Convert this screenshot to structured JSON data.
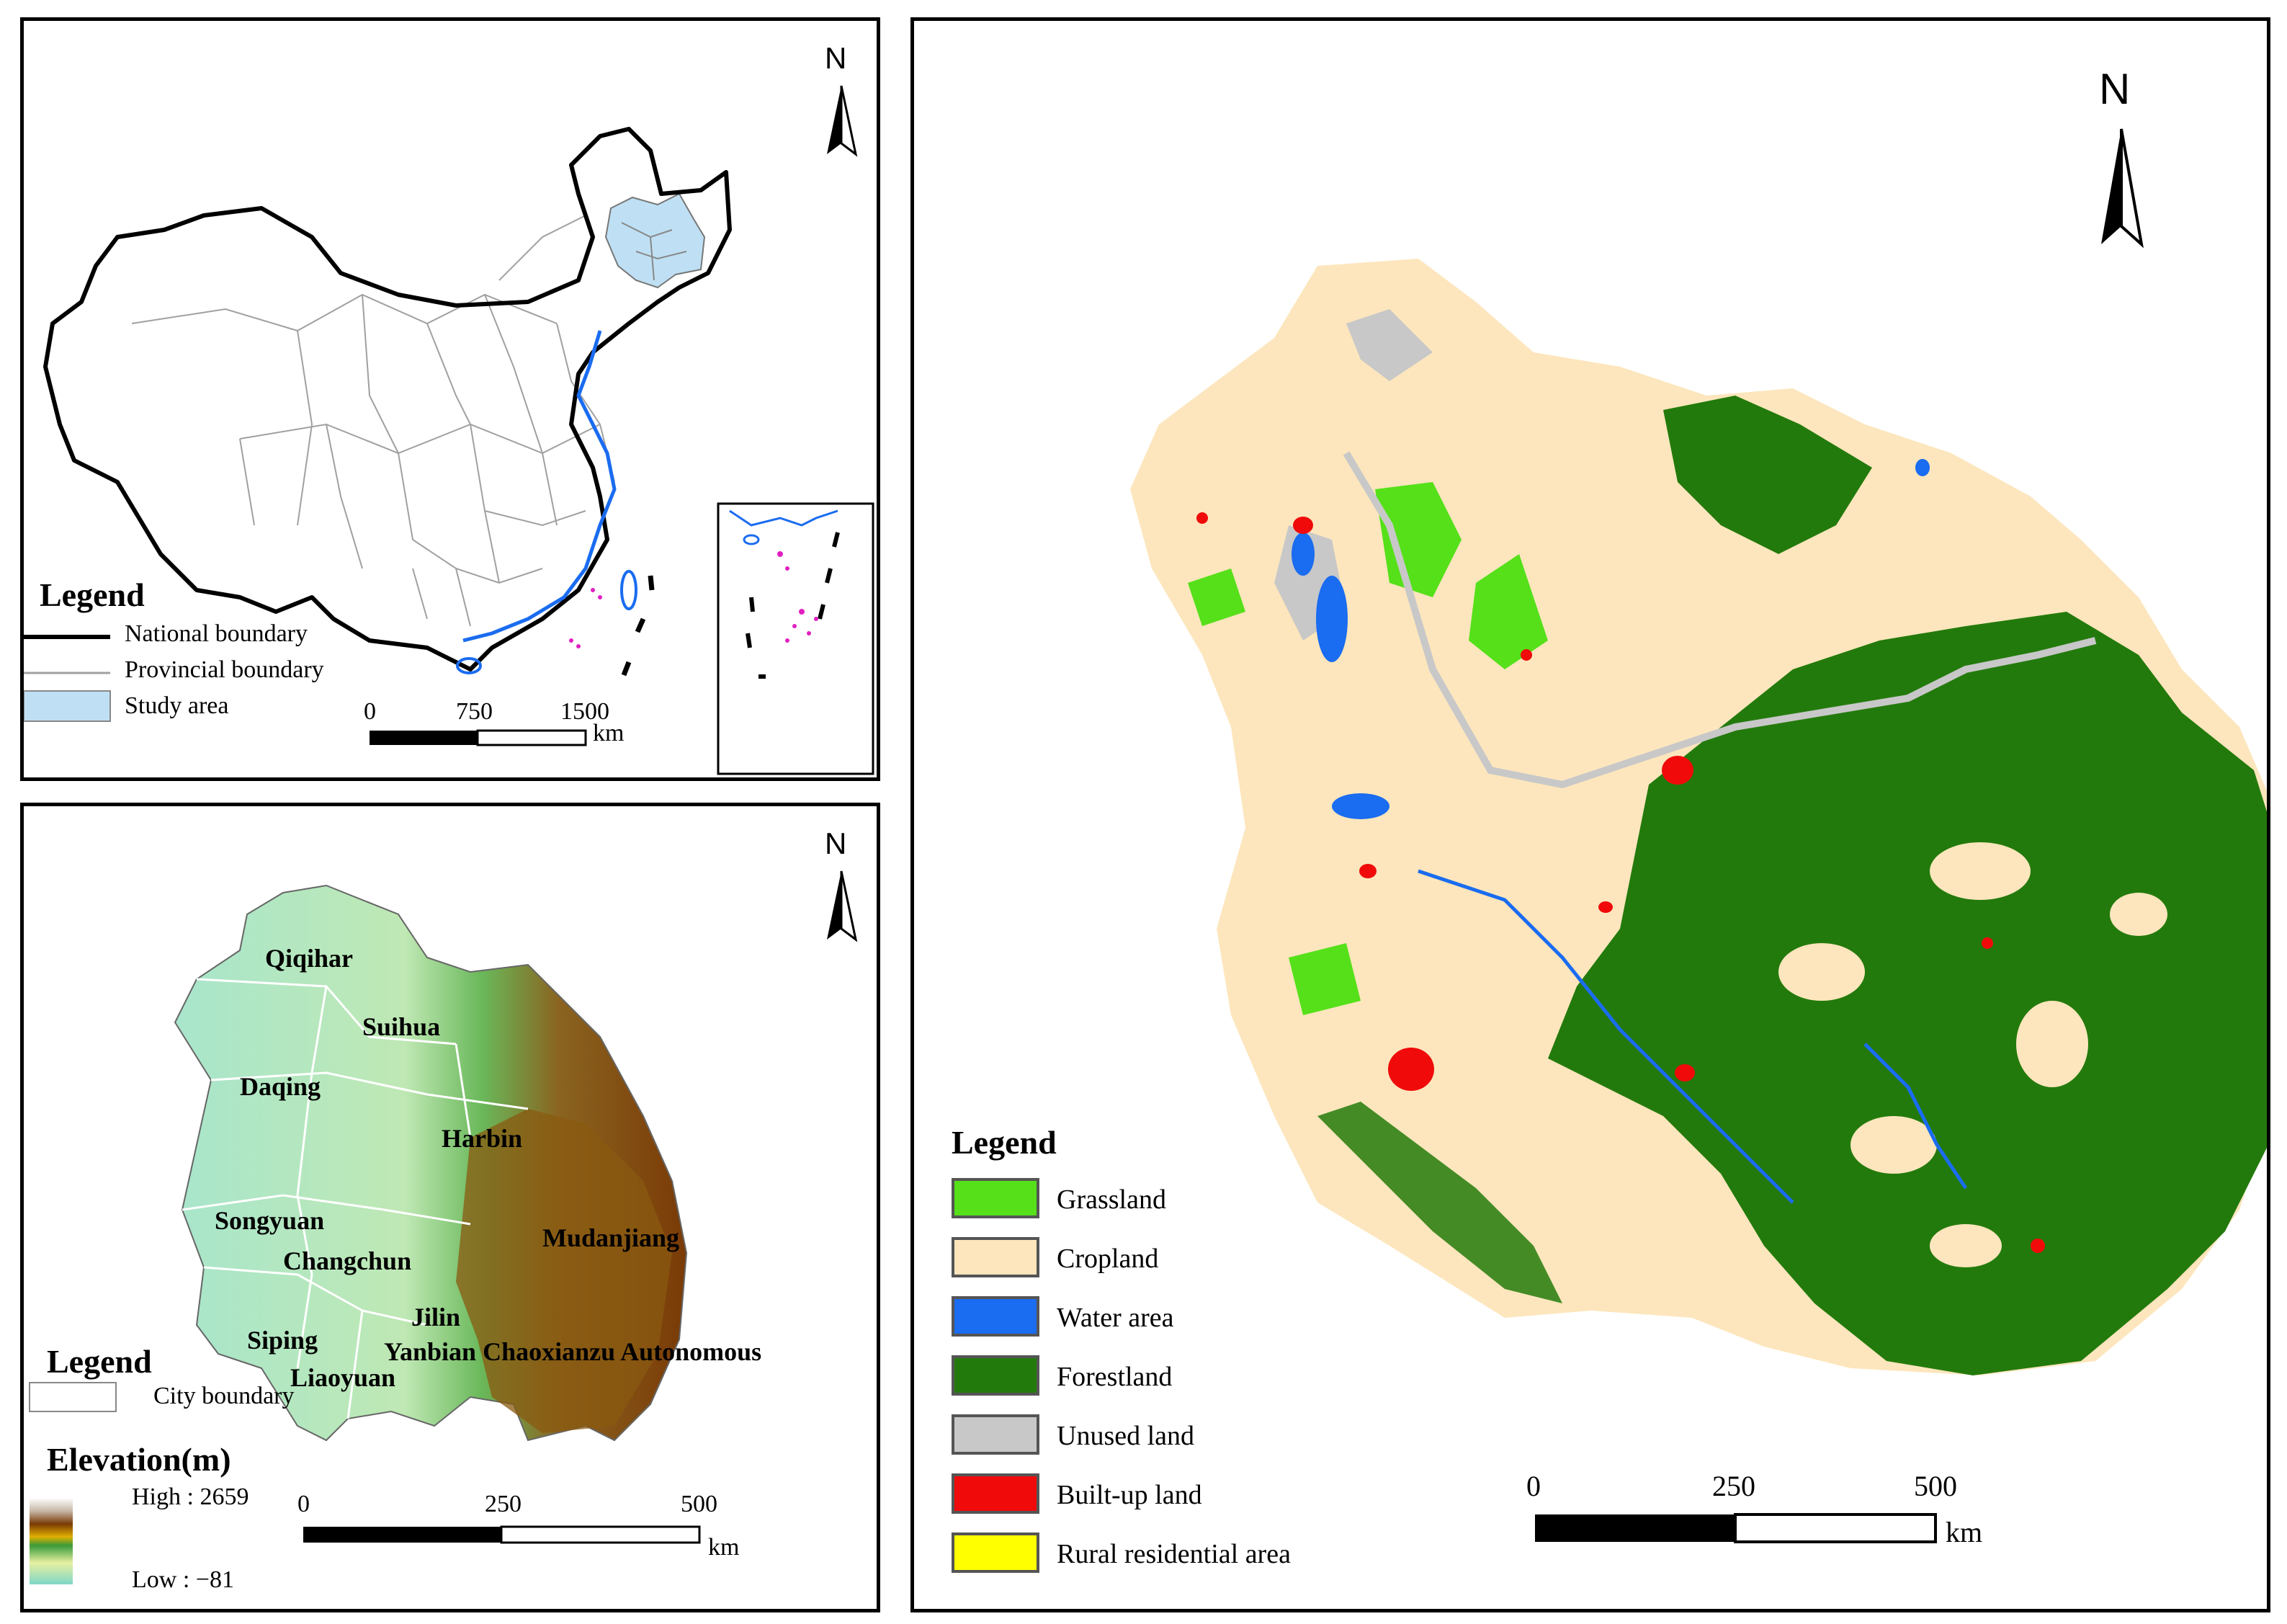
{
  "china_map": {
    "north_label": "N",
    "legend_title": "Legend",
    "legend_items": [
      {
        "label": "National boundary",
        "symbol": "thick-line",
        "color": "#000000"
      },
      {
        "label": "Provincial boundary",
        "symbol": "thin-line",
        "color": "#a0a0a0"
      },
      {
        "label": "Study area",
        "symbol": "fill",
        "color": "#bfe0f4"
      }
    ],
    "scale": {
      "ticks": [
        "0",
        "750",
        "1500"
      ],
      "unit": "km"
    }
  },
  "elevation_map": {
    "north_label": "N",
    "cities": [
      "Qiqihar",
      "Suihua",
      "Daqing",
      "Harbin",
      "Songyuan",
      "Changchun",
      "Mudanjiang",
      "Jilin",
      "Siping",
      "Yanbian Chaoxianzu Autonomous",
      "Liaoyuan"
    ],
    "legend_title": "Legend",
    "boundary_label": "City boundary",
    "elevation_title": "Elevation(m)",
    "high_label": "High : 2659",
    "low_label": "Low : −81",
    "scale": {
      "ticks": [
        "0",
        "250",
        "500"
      ],
      "unit": "km"
    }
  },
  "landuse_map": {
    "north_label": "N",
    "legend_title": "Legend",
    "classes": [
      {
        "label": "Grassland",
        "color": "#55e01a"
      },
      {
        "label": "Cropland",
        "color": "#fde6bd"
      },
      {
        "label": "Water area",
        "color": "#1a6cf0"
      },
      {
        "label": "Forestland",
        "color": "#237a0c"
      },
      {
        "label": "Unused land",
        "color": "#c8c8c8"
      },
      {
        "label": "Built-up land",
        "color": "#f00a0a"
      },
      {
        "label": "Rural residential area",
        "color": "#ffff00"
      }
    ],
    "scale": {
      "ticks": [
        "0",
        "250",
        "500"
      ],
      "unit": "km"
    }
  }
}
